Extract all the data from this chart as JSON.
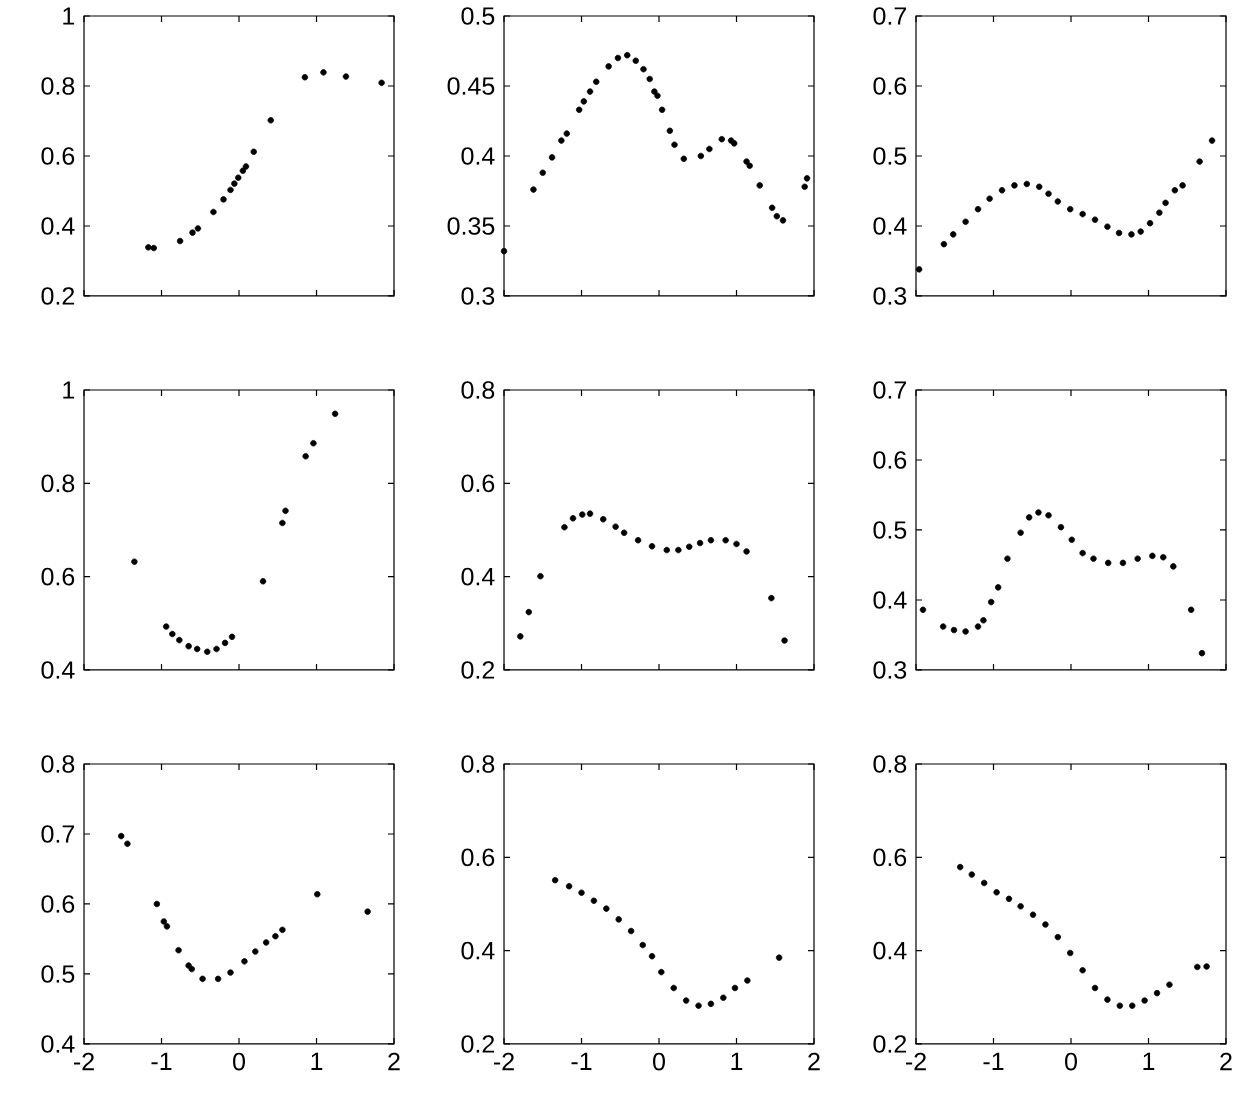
{
  "chart_data": [
    {
      "type": "scatter",
      "color": "#000000",
      "marker": "circle",
      "xlim": [
        -2,
        2
      ],
      "ylim": [
        0.2,
        1
      ],
      "xticks": [
        -2,
        -1,
        0,
        1,
        2
      ],
      "yticks": [
        0.2,
        0.4,
        0.6,
        0.8,
        1
      ],
      "tick_labels": "y",
      "x": [
        -1.17,
        -1.1,
        -0.76,
        -0.6,
        -0.53,
        -0.33,
        -0.2,
        -0.11,
        -0.06,
        -0.01,
        0.05,
        0.09,
        0.19,
        0.41,
        0.85,
        1.09,
        1.38,
        1.84
      ],
      "values": [
        0.339,
        0.337,
        0.357,
        0.381,
        0.393,
        0.44,
        0.476,
        0.503,
        0.521,
        0.538,
        0.558,
        0.57,
        0.612,
        0.702,
        0.825,
        0.839,
        0.827,
        0.809
      ]
    },
    {
      "type": "scatter",
      "color": "#000000",
      "marker": "circle",
      "xlim": [
        -2,
        2
      ],
      "ylim": [
        0.3,
        0.5
      ],
      "xticks": [
        -2,
        -1,
        0,
        1,
        2
      ],
      "yticks": [
        0.3,
        0.35,
        0.4,
        0.45,
        0.5
      ],
      "tick_labels": "y",
      "x": [
        -2.0,
        -1.62,
        -1.5,
        -1.38,
        -1.26,
        -1.19,
        -1.03,
        -0.97,
        -0.89,
        -0.81,
        -0.65,
        -0.53,
        -0.41,
        -0.3,
        -0.2,
        -0.12,
        -0.06,
        -0.02,
        0.04,
        0.14,
        0.2,
        0.32,
        0.54,
        0.65,
        0.81,
        0.93,
        0.97,
        1.13,
        1.17,
        1.3,
        1.46,
        1.52,
        1.6,
        1.88,
        1.91
      ],
      "values": [
        0.332,
        0.376,
        0.388,
        0.399,
        0.411,
        0.416,
        0.433,
        0.439,
        0.446,
        0.453,
        0.464,
        0.47,
        0.472,
        0.468,
        0.462,
        0.455,
        0.446,
        0.443,
        0.433,
        0.418,
        0.408,
        0.398,
        0.4,
        0.405,
        0.412,
        0.411,
        0.409,
        0.396,
        0.393,
        0.379,
        0.363,
        0.357,
        0.354,
        0.378,
        0.384
      ]
    },
    {
      "type": "scatter",
      "color": "#000000",
      "marker": "circle",
      "xlim": [
        -2,
        2
      ],
      "ylim": [
        0.3,
        0.7
      ],
      "xticks": [
        -2,
        -1,
        0,
        1,
        2
      ],
      "yticks": [
        0.3,
        0.4,
        0.5,
        0.6,
        0.7
      ],
      "tick_labels": "y",
      "x": [
        -1.96,
        -1.64,
        -1.52,
        -1.36,
        -1.2,
        -1.05,
        -0.89,
        -0.73,
        -0.57,
        -0.41,
        -0.29,
        -0.17,
        -0.01,
        0.15,
        0.31,
        0.47,
        0.62,
        0.78,
        0.9,
        1.02,
        1.14,
        1.22,
        1.34,
        1.44,
        1.66,
        1.82
      ],
      "values": [
        0.338,
        0.374,
        0.388,
        0.406,
        0.424,
        0.439,
        0.451,
        0.458,
        0.46,
        0.456,
        0.446,
        0.435,
        0.424,
        0.417,
        0.409,
        0.399,
        0.39,
        0.388,
        0.392,
        0.404,
        0.419,
        0.433,
        0.451,
        0.458,
        0.492,
        0.522
      ]
    },
    {
      "type": "scatter",
      "color": "#000000",
      "marker": "circle",
      "xlim": [
        -2,
        2
      ],
      "ylim": [
        0.4,
        1
      ],
      "xticks": [
        -2,
        -1,
        0,
        1,
        2
      ],
      "yticks": [
        0.4,
        0.6,
        0.8,
        1
      ],
      "tick_labels": "y",
      "x": [
        -1.35,
        -0.94,
        -0.86,
        -0.77,
        -0.65,
        -0.54,
        -0.41,
        -0.29,
        -0.18,
        -0.09,
        0.31,
        0.56,
        0.6,
        0.86,
        0.96,
        1.24
      ],
      "values": [
        0.632,
        0.493,
        0.477,
        0.464,
        0.451,
        0.445,
        0.439,
        0.445,
        0.458,
        0.471,
        0.59,
        0.715,
        0.741,
        0.858,
        0.886,
        0.949
      ]
    },
    {
      "type": "scatter",
      "color": "#000000",
      "marker": "circle",
      "xlim": [
        -2,
        2
      ],
      "ylim": [
        0.2,
        0.8
      ],
      "xticks": [
        -2,
        -1,
        0,
        1,
        2
      ],
      "yticks": [
        0.2,
        0.4,
        0.6,
        0.8
      ],
      "tick_labels": "y",
      "x": [
        -1.79,
        -1.68,
        -1.53,
        -1.22,
        -1.11,
        -0.99,
        -0.89,
        -0.72,
        -0.56,
        -0.45,
        -0.27,
        -0.09,
        0.1,
        0.25,
        0.39,
        0.53,
        0.67,
        0.86,
        1.0,
        1.13,
        1.45,
        1.62
      ],
      "values": [
        0.272,
        0.324,
        0.401,
        0.506,
        0.525,
        0.533,
        0.535,
        0.523,
        0.507,
        0.494,
        0.478,
        0.465,
        0.457,
        0.457,
        0.464,
        0.472,
        0.478,
        0.478,
        0.47,
        0.454,
        0.354,
        0.263
      ]
    },
    {
      "type": "scatter",
      "color": "#000000",
      "marker": "circle",
      "xlim": [
        -2,
        2
      ],
      "ylim": [
        0.3,
        0.7
      ],
      "xticks": [
        -2,
        -1,
        0,
        1,
        2
      ],
      "yticks": [
        0.3,
        0.4,
        0.5,
        0.6,
        0.7
      ],
      "tick_labels": "y",
      "x": [
        -1.91,
        -1.65,
        -1.51,
        -1.36,
        -1.2,
        -1.13,
        -1.03,
        -0.94,
        -0.82,
        -0.65,
        -0.54,
        -0.42,
        -0.29,
        -0.13,
        0.01,
        0.15,
        0.29,
        0.48,
        0.67,
        0.86,
        1.05,
        1.19,
        1.32,
        1.55,
        1.69
      ],
      "values": [
        0.386,
        0.362,
        0.357,
        0.355,
        0.362,
        0.371,
        0.397,
        0.418,
        0.459,
        0.496,
        0.518,
        0.525,
        0.521,
        0.504,
        0.486,
        0.467,
        0.459,
        0.453,
        0.453,
        0.459,
        0.463,
        0.461,
        0.448,
        0.386,
        0.324
      ]
    },
    {
      "type": "scatter",
      "color": "#000000",
      "marker": "circle",
      "xlim": [
        -2,
        2
      ],
      "ylim": [
        0.4,
        0.8
      ],
      "xticks": [
        -2,
        -1,
        0,
        1,
        2
      ],
      "yticks": [
        0.4,
        0.5,
        0.6,
        0.7,
        0.8
      ],
      "x": [
        -1.52,
        -1.44,
        -1.06,
        -0.97,
        -0.93,
        -0.78,
        -0.65,
        -0.61,
        -0.47,
        -0.27,
        -0.11,
        0.07,
        0.21,
        0.35,
        0.47,
        0.56,
        1.01,
        1.66
      ],
      "values": [
        0.697,
        0.686,
        0.6,
        0.575,
        0.568,
        0.534,
        0.512,
        0.507,
        0.493,
        0.493,
        0.502,
        0.518,
        0.532,
        0.545,
        0.554,
        0.563,
        0.614,
        0.589
      ]
    },
    {
      "type": "scatter",
      "color": "#000000",
      "marker": "circle",
      "xlim": [
        -2,
        2
      ],
      "ylim": [
        0.2,
        0.8
      ],
      "xticks": [
        -2,
        -1,
        0,
        1,
        2
      ],
      "yticks": [
        0.2,
        0.4,
        0.6,
        0.8
      ],
      "x": [
        -1.34,
        -1.16,
        -1.0,
        -0.84,
        -0.68,
        -0.52,
        -0.36,
        -0.21,
        -0.09,
        0.03,
        0.19,
        0.35,
        0.51,
        0.67,
        0.83,
        0.98,
        1.14,
        1.55
      ],
      "values": [
        0.551,
        0.538,
        0.524,
        0.507,
        0.49,
        0.467,
        0.442,
        0.412,
        0.388,
        0.354,
        0.32,
        0.293,
        0.282,
        0.286,
        0.299,
        0.32,
        0.336,
        0.385
      ]
    },
    {
      "type": "scatter",
      "color": "#000000",
      "marker": "circle",
      "xlim": [
        -2,
        2
      ],
      "ylim": [
        0.2,
        0.8
      ],
      "xticks": [
        -2,
        -1,
        0,
        1,
        2
      ],
      "yticks": [
        0.2,
        0.4,
        0.6,
        0.8
      ],
      "x": [
        -1.43,
        -1.28,
        -1.12,
        -0.96,
        -0.8,
        -0.65,
        -0.49,
        -0.33,
        -0.17,
        -0.01,
        0.15,
        0.31,
        0.47,
        0.63,
        0.79,
        0.95,
        1.11,
        1.27,
        1.63,
        1.75
      ],
      "values": [
        0.579,
        0.563,
        0.545,
        0.525,
        0.511,
        0.495,
        0.477,
        0.456,
        0.429,
        0.395,
        0.358,
        0.32,
        0.295,
        0.282,
        0.282,
        0.293,
        0.309,
        0.327,
        0.365,
        0.366
      ]
    }
  ]
}
